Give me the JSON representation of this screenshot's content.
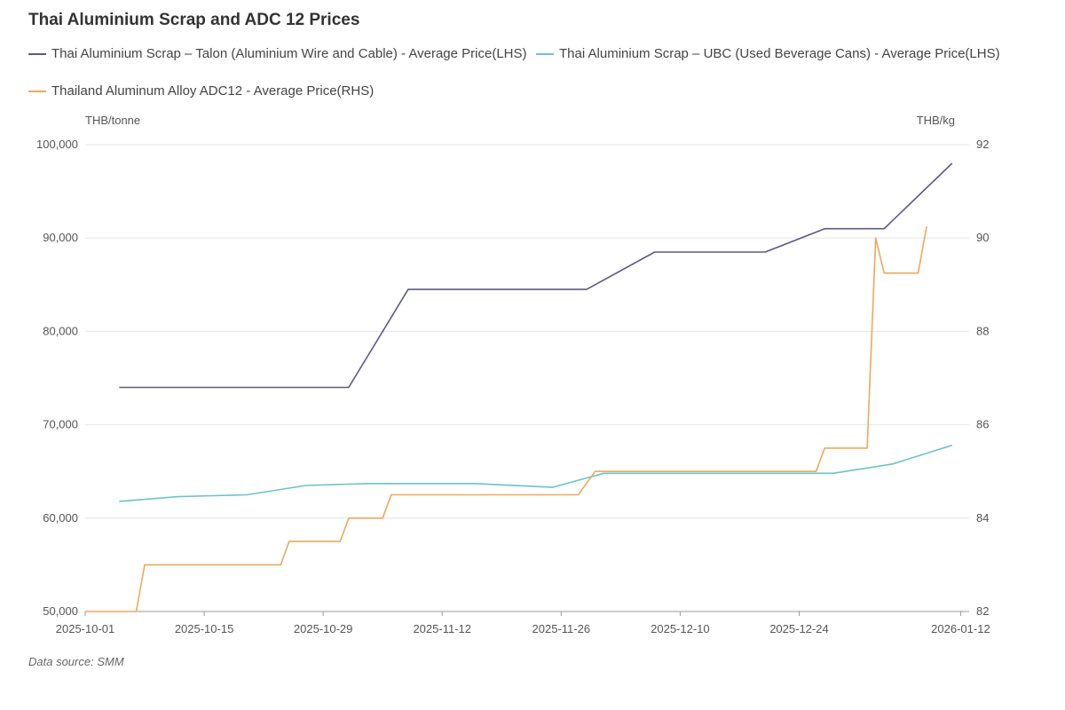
{
  "chart_data": {
    "type": "line",
    "title": "Thai Aluminium Scrap and ADC 12 Prices",
    "left_unit": "THB/tonne",
    "right_unit": "THB/kg",
    "y_left": {
      "min": 50000,
      "max": 100000,
      "ticks": [
        50000,
        60000,
        70000,
        80000,
        90000,
        100000
      ],
      "tick_labels": [
        "50,000",
        "60,000",
        "70,000",
        "80,000",
        "90,000",
        "100,000"
      ]
    },
    "y_right": {
      "min": 82,
      "max": 92,
      "ticks": [
        82,
        84,
        86,
        88,
        90,
        92
      ],
      "tick_labels": [
        "82",
        "84",
        "86",
        "88",
        "90",
        "92"
      ]
    },
    "x_ticks": [
      "2025-10-01",
      "2025-10-15",
      "2025-10-29",
      "2025-11-12",
      "2025-11-26",
      "2025-12-10",
      "2025-12-24",
      "2026-01-12"
    ],
    "grid": true,
    "legend_position": "top",
    "series": [
      {
        "name": "Thai Aluminium Scrap – Talon (Aluminium Wire and Cable) - Average Price(LHS)",
        "axis": "left",
        "color": "#5b5a85",
        "points": [
          [
            "2025-10-05",
            74000
          ],
          [
            "2025-11-01",
            74000
          ],
          [
            "2025-11-08",
            84500
          ],
          [
            "2025-11-29",
            84500
          ],
          [
            "2025-12-07",
            88500
          ],
          [
            "2025-12-20",
            88500
          ],
          [
            "2025-12-27",
            91000
          ],
          [
            "2026-01-03",
            91000
          ],
          [
            "2026-01-11",
            98000
          ]
        ]
      },
      {
        "name": "Thai Aluminium Scrap – UBC (Used Beverage Cans) - Average Price(LHS)",
        "axis": "left",
        "color": "#6cc3cc",
        "points": [
          [
            "2025-10-05",
            61800
          ],
          [
            "2025-10-12",
            62300
          ],
          [
            "2025-10-20",
            62500
          ],
          [
            "2025-10-27",
            63500
          ],
          [
            "2025-11-03",
            63700
          ],
          [
            "2025-11-16",
            63700
          ],
          [
            "2025-11-25",
            63300
          ],
          [
            "2025-12-01",
            64800
          ],
          [
            "2025-12-28",
            64800
          ],
          [
            "2026-01-04",
            65800
          ],
          [
            "2026-01-11",
            67800
          ]
        ]
      },
      {
        "name": "Thailand Aluminum Alloy ADC12 - Average Price(RHS)",
        "axis": "right",
        "color": "#eaaa5c",
        "points": [
          [
            "2025-10-01",
            82
          ],
          [
            "2025-10-07",
            82
          ],
          [
            "2025-10-08",
            83
          ],
          [
            "2025-10-24",
            83
          ],
          [
            "2025-10-25",
            83.5
          ],
          [
            "2025-10-31",
            83.5
          ],
          [
            "2025-11-01",
            84
          ],
          [
            "2025-11-05",
            84
          ],
          [
            "2025-11-06",
            84.5
          ],
          [
            "2025-11-28",
            84.5
          ],
          [
            "2025-11-30",
            85
          ],
          [
            "2025-12-26",
            85
          ],
          [
            "2025-12-27",
            85.5
          ],
          [
            "2026-01-01",
            85.5
          ],
          [
            "2026-01-02",
            90
          ],
          [
            "2026-01-03",
            89.25
          ],
          [
            "2026-01-07",
            89.25
          ],
          [
            "2026-01-08",
            90.25
          ]
        ]
      }
    ],
    "source": "Data source: SMM"
  }
}
